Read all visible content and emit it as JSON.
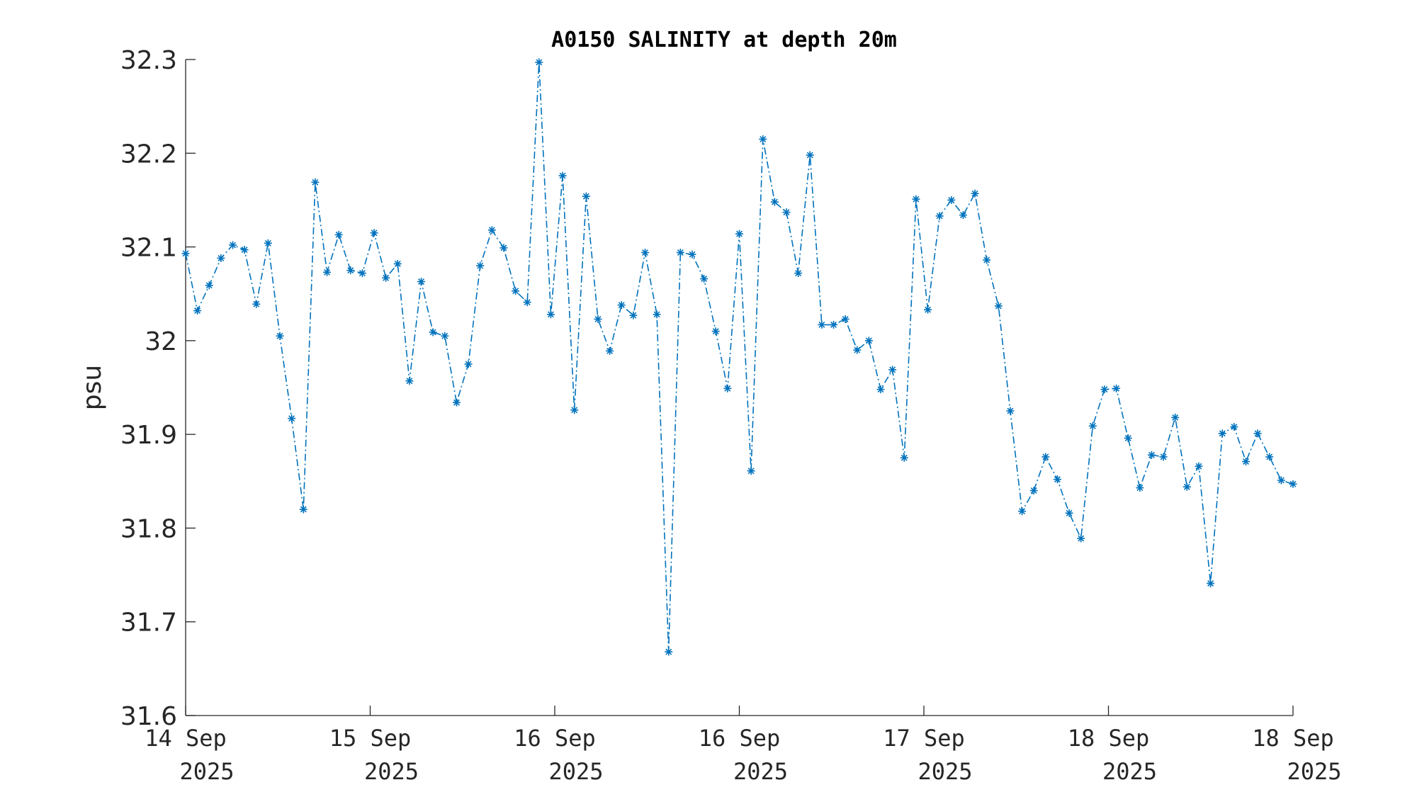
{
  "chart_data": {
    "type": "line",
    "title": "A0150 SALINITY at depth 20m",
    "ylabel": "psu",
    "xlabel": "",
    "ylim": [
      31.6,
      32.3
    ],
    "yticks": [
      "31.6",
      "31.7",
      "31.8",
      "31.9",
      "32",
      "32.1",
      "32.2",
      "32.3"
    ],
    "xticks": [
      {
        "day": "14 Sep",
        "year": "2025"
      },
      {
        "day": "15 Sep",
        "year": "2025"
      },
      {
        "day": "16 Sep",
        "year": "2025"
      },
      {
        "day": "16 Sep",
        "year": "2025"
      },
      {
        "day": "17 Sep",
        "year": "2025"
      },
      {
        "day": "18 Sep",
        "year": "2025"
      },
      {
        "day": "18 Sep",
        "year": "2025"
      }
    ],
    "grid": false,
    "marker": "asterisk",
    "line_style": "dash-dot",
    "series": [
      {
        "color": "#0072BD",
        "values": [
          32.093,
          32.032,
          32.059,
          32.088,
          32.102,
          32.097,
          32.039,
          32.104,
          32.005,
          31.917,
          31.82,
          32.169,
          32.073,
          32.113,
          32.075,
          32.072,
          32.115,
          32.067,
          32.082,
          31.957,
          32.063,
          32.009,
          32.005,
          31.934,
          31.975,
          32.08,
          32.118,
          32.099,
          32.053,
          32.041,
          32.297,
          32.028,
          32.176,
          31.926,
          32.154,
          32.023,
          31.989,
          32.038,
          32.027,
          32.094,
          32.028,
          31.668,
          32.094,
          32.092,
          32.066,
          32.01,
          31.949,
          32.114,
          31.861,
          32.215,
          32.148,
          32.137,
          32.072,
          32.198,
          32.017,
          32.017,
          32.023,
          31.99,
          32.0,
          31.948,
          31.969,
          31.875,
          32.151,
          32.033,
          32.133,
          32.15,
          32.134,
          32.157,
          32.086,
          32.037,
          31.925,
          31.818,
          31.84,
          31.876,
          31.852,
          31.816,
          31.789,
          31.909,
          31.948,
          31.949,
          31.896,
          31.843,
          31.878,
          31.876,
          31.918,
          31.844,
          31.866,
          31.741,
          31.901,
          31.908,
          31.871,
          31.901,
          31.876,
          31.851,
          31.847
        ]
      }
    ]
  }
}
